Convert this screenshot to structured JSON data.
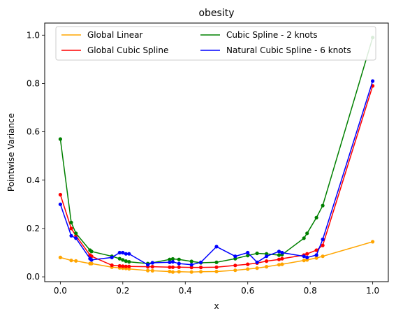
{
  "chart_data": {
    "type": "line",
    "title": "obesity",
    "xlabel": "x",
    "ylabel": "Pointwise Variance",
    "xlim": [
      -0.05,
      1.05
    ],
    "ylim": [
      -0.02,
      1.05
    ],
    "xticks": [
      "0.0",
      "0.2",
      "0.4",
      "0.6",
      "0.8",
      "1.0"
    ],
    "yticks": [
      "0.0",
      "0.2",
      "0.4",
      "0.6",
      "0.8",
      "1.0"
    ],
    "grid": false,
    "legend_position": "top",
    "legend_columns": 2,
    "series": [
      {
        "name": "Global Linear",
        "color": "#ffa500",
        "x": [
          0.0,
          0.035,
          0.05,
          0.095,
          0.1,
          0.165,
          0.19,
          0.2,
          0.21,
          0.22,
          0.28,
          0.295,
          0.35,
          0.36,
          0.38,
          0.42,
          0.45,
          0.5,
          0.56,
          0.6,
          0.63,
          0.66,
          0.7,
          0.71,
          0.78,
          0.79,
          0.82,
          0.84,
          1.0
        ],
        "y": [
          0.08,
          0.068,
          0.066,
          0.055,
          0.055,
          0.04,
          0.037,
          0.036,
          0.035,
          0.033,
          0.026,
          0.025,
          0.022,
          0.02,
          0.021,
          0.02,
          0.021,
          0.022,
          0.027,
          0.032,
          0.036,
          0.042,
          0.05,
          0.052,
          0.068,
          0.07,
          0.078,
          0.085,
          0.145
        ]
      },
      {
        "name": "Global Cubic Spline",
        "color": "#ff0000",
        "x": [
          0.0,
          0.035,
          0.05,
          0.095,
          0.1,
          0.165,
          0.19,
          0.2,
          0.21,
          0.22,
          0.28,
          0.295,
          0.35,
          0.36,
          0.38,
          0.42,
          0.45,
          0.5,
          0.56,
          0.6,
          0.63,
          0.66,
          0.7,
          0.71,
          0.78,
          0.79,
          0.82,
          0.84,
          1.0
        ],
        "y": [
          0.34,
          0.2,
          0.17,
          0.09,
          0.085,
          0.048,
          0.045,
          0.044,
          0.043,
          0.043,
          0.042,
          0.042,
          0.04,
          0.04,
          0.04,
          0.039,
          0.039,
          0.04,
          0.047,
          0.052,
          0.057,
          0.065,
          0.072,
          0.075,
          0.09,
          0.095,
          0.11,
          0.13,
          0.79
        ]
      },
      {
        "name": "Cubic Spline - 2 knots",
        "color": "#008000",
        "x": [
          0.0,
          0.035,
          0.05,
          0.095,
          0.1,
          0.165,
          0.19,
          0.2,
          0.21,
          0.22,
          0.28,
          0.295,
          0.35,
          0.36,
          0.38,
          0.42,
          0.45,
          0.5,
          0.56,
          0.6,
          0.63,
          0.66,
          0.7,
          0.71,
          0.78,
          0.79,
          0.82,
          0.84,
          1.0
        ],
        "y": [
          0.57,
          0.225,
          0.18,
          0.11,
          0.105,
          0.085,
          0.075,
          0.07,
          0.065,
          0.062,
          0.055,
          0.058,
          0.072,
          0.074,
          0.072,
          0.064,
          0.058,
          0.06,
          0.075,
          0.088,
          0.097,
          0.095,
          0.09,
          0.092,
          0.16,
          0.18,
          0.245,
          0.295,
          0.99
        ]
      },
      {
        "name": "Natural Cubic Spline - 6 knots",
        "color": "#0000ff",
        "x": [
          0.0,
          0.035,
          0.05,
          0.095,
          0.1,
          0.165,
          0.19,
          0.2,
          0.21,
          0.22,
          0.28,
          0.295,
          0.35,
          0.36,
          0.38,
          0.42,
          0.45,
          0.5,
          0.56,
          0.6,
          0.63,
          0.66,
          0.7,
          0.71,
          0.78,
          0.79,
          0.82,
          0.84,
          1.0
        ],
        "y": [
          0.3,
          0.17,
          0.16,
          0.075,
          0.07,
          0.08,
          0.1,
          0.1,
          0.095,
          0.095,
          0.05,
          0.058,
          0.06,
          0.062,
          0.055,
          0.05,
          0.06,
          0.125,
          0.085,
          0.1,
          0.06,
          0.085,
          0.105,
          0.1,
          0.085,
          0.08,
          0.09,
          0.155,
          0.81
        ]
      }
    ]
  }
}
